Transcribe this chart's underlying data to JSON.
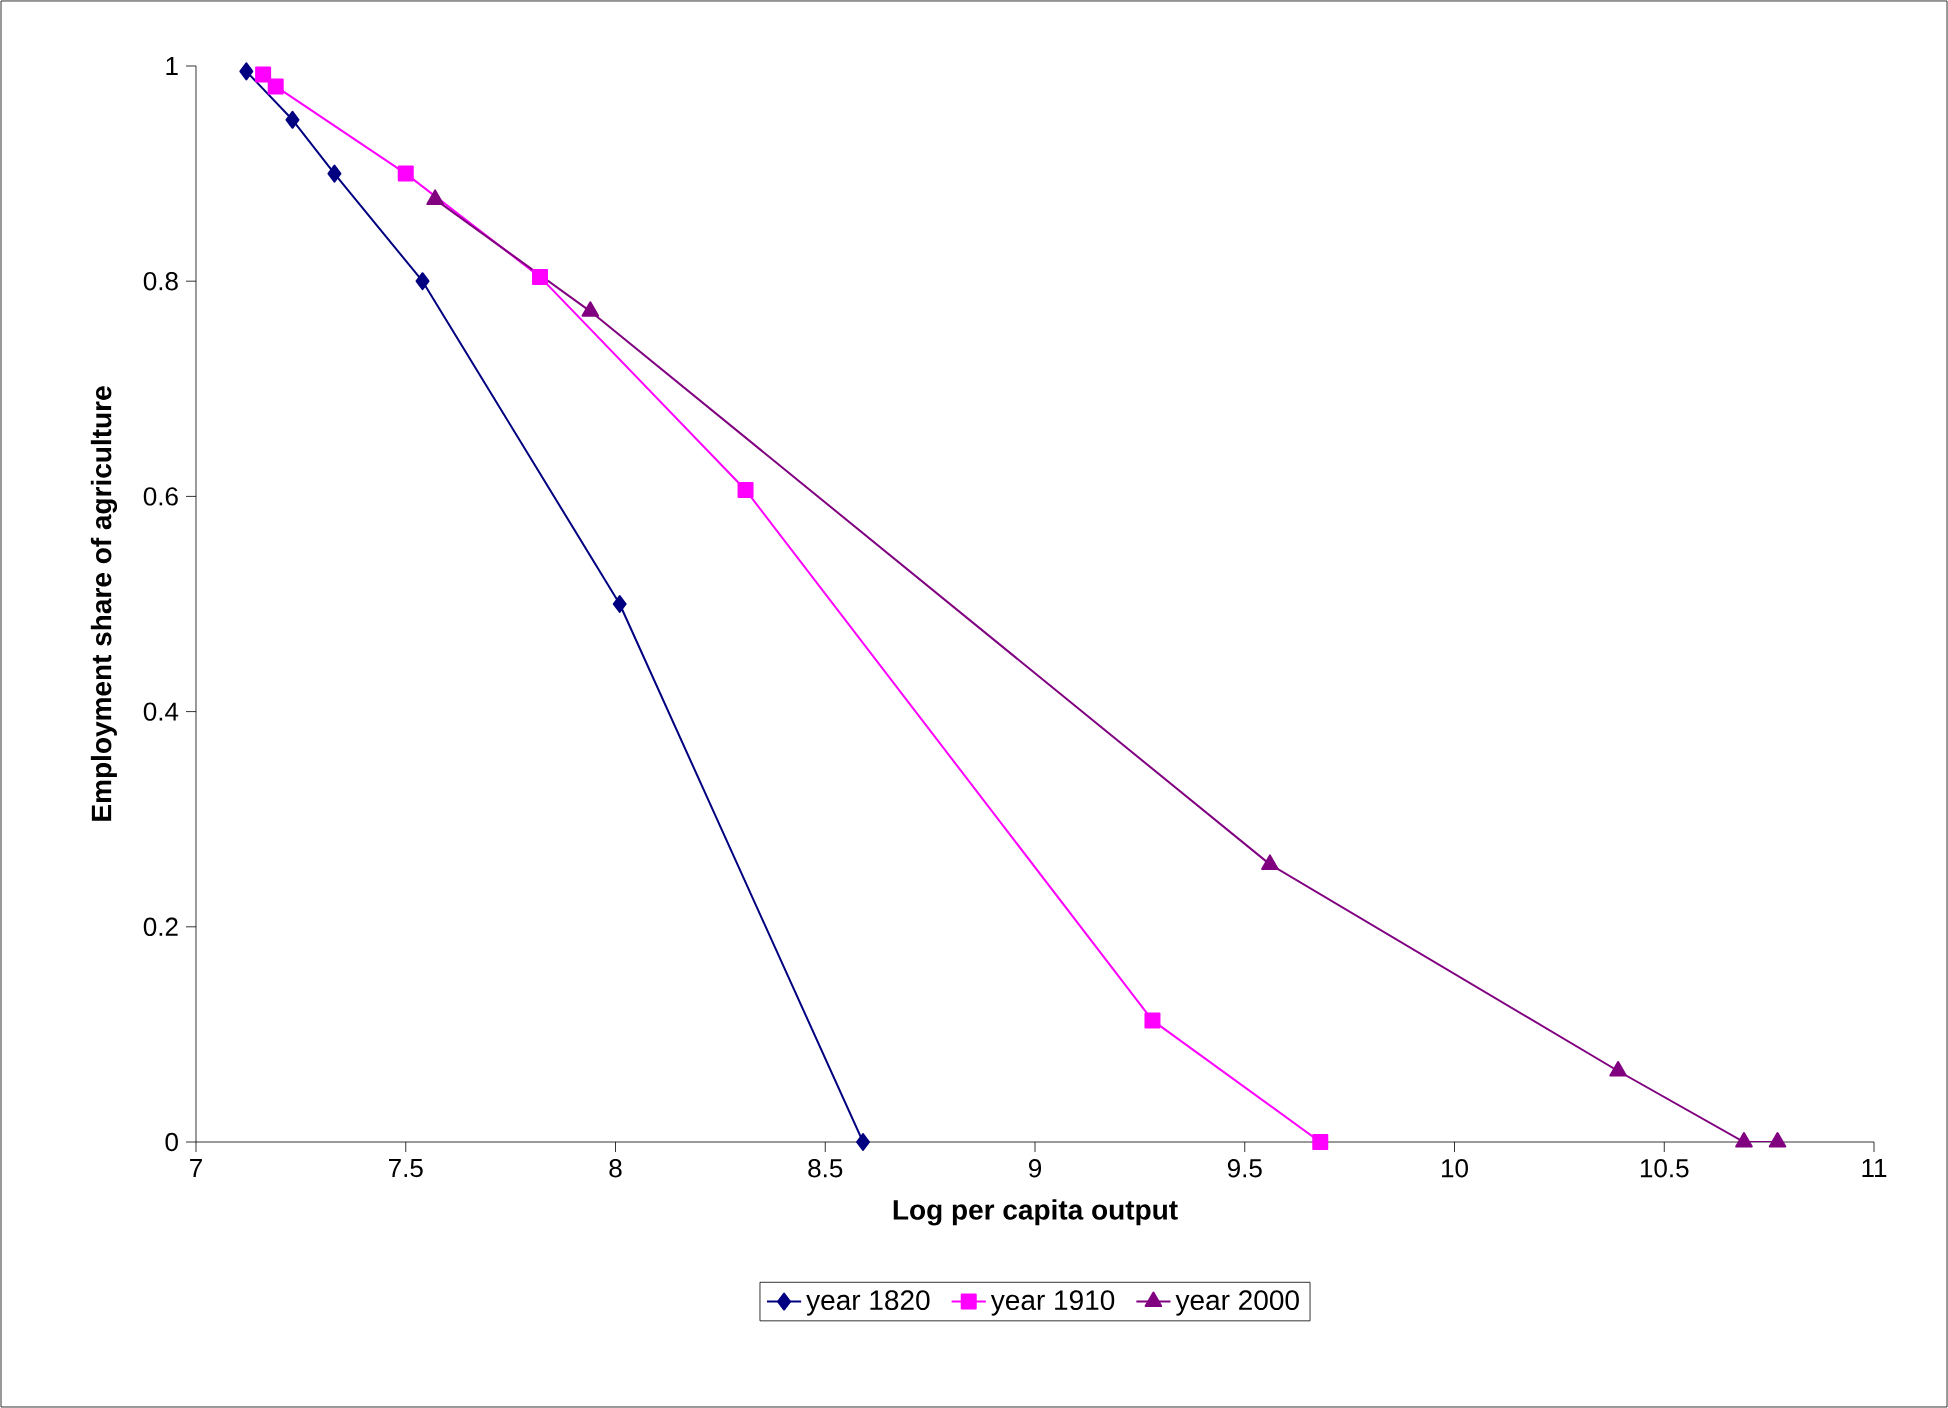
{
  "chart_data": {
    "type": "line",
    "xlabel": "Log per capita output",
    "ylabel": "Employment share of agriculture",
    "xlim": [
      7,
      11
    ],
    "xticks": [
      7,
      7.5,
      8,
      8.5,
      9,
      9.5,
      10,
      10.5,
      11
    ],
    "ylim": [
      0,
      1
    ],
    "yticks": [
      0,
      0.2,
      0.4,
      0.6,
      0.8,
      1
    ],
    "grid": false,
    "legend": "bottom",
    "line_style": "solid",
    "series": [
      {
        "name": "year 1820",
        "color": "#000080",
        "marker": "diamond",
        "x": [
          7.12,
          7.23,
          7.33,
          7.54,
          8.01,
          8.59
        ],
        "values": [
          0.995,
          0.95,
          0.9,
          0.8,
          0.5,
          0
        ]
      },
      {
        "name": "year 1910",
        "color": "#ff00ff",
        "marker": "square",
        "x": [
          7.16,
          7.19,
          7.5,
          7.82,
          8.31,
          9.28,
          9.68
        ],
        "values": [
          0.992,
          0.981,
          0.9,
          0.804,
          0.606,
          0.113,
          0
        ]
      },
      {
        "name": "year 2000",
        "color": "#800080",
        "marker": "triangle",
        "x": [
          7.57,
          7.94,
          9.56,
          10.39,
          10.69,
          10.77
        ],
        "values": [
          0.876,
          0.772,
          0.258,
          0.066,
          0,
          0
        ]
      }
    ]
  }
}
